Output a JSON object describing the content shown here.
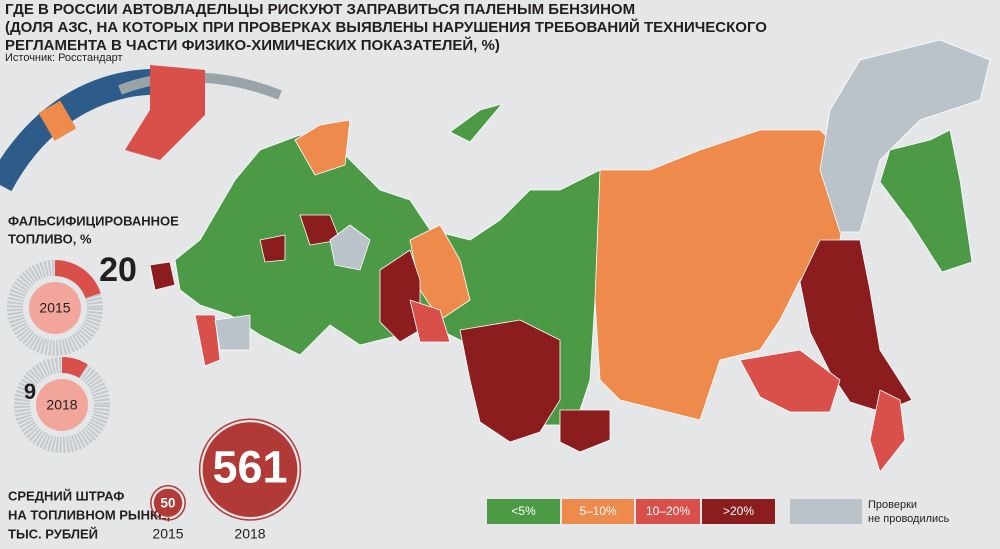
{
  "header": {
    "title": [
      "ГДЕ В РОССИИ АВТОВЛАДЕЛЬЦЫ РИСКУЮТ ЗАПРАВИТЬСЯ ПАЛЕНЫМ БЕНЗИНОМ",
      "(ДОЛЯ АЗС, НА КОТОРЫХ ПРИ ПРОВЕРКАХ ВЫЯВЛЕНЫ НАРУШЕНИЯ ТРЕБОВАНИЙ ТЕХНИЧЕСКОГО",
      "РЕГЛАМЕНТА В ЧАСТИ ФИЗИКО-ХИМИЧЕСКИХ ПОКАЗАТЕЛЕЙ, %)"
    ],
    "source": "Источник: Росстандарт"
  },
  "falsified": {
    "label": [
      "ФАЛЬСИФИЦИРОВАННОЕ",
      "ТОПЛИВО, %"
    ],
    "items": [
      {
        "year": "2015",
        "value": 20
      },
      {
        "year": "2018",
        "value": 9
      }
    ]
  },
  "fines": {
    "label": [
      "СРЕДНИЙ ШТРАФ",
      "НА ТОПЛИВНОМ РЫНКЕ,",
      "ТЫС. РУБЛЕЙ"
    ],
    "items": [
      {
        "year": "2015",
        "value": 50
      },
      {
        "year": "2018",
        "value": 561
      }
    ]
  },
  "legend": [
    {
      "label": "<5%",
      "color": "#4c9a45"
    },
    {
      "label": "5–10%",
      "color": "#ee8a4b"
    },
    {
      "label": "10–20%",
      "color": "#d9504a"
    },
    {
      "label": ">20%",
      "color": "#8c1d1f"
    },
    {
      "label": [
        "Проверки",
        "не проводились"
      ],
      "color": "#b9c3c9"
    }
  ]
}
